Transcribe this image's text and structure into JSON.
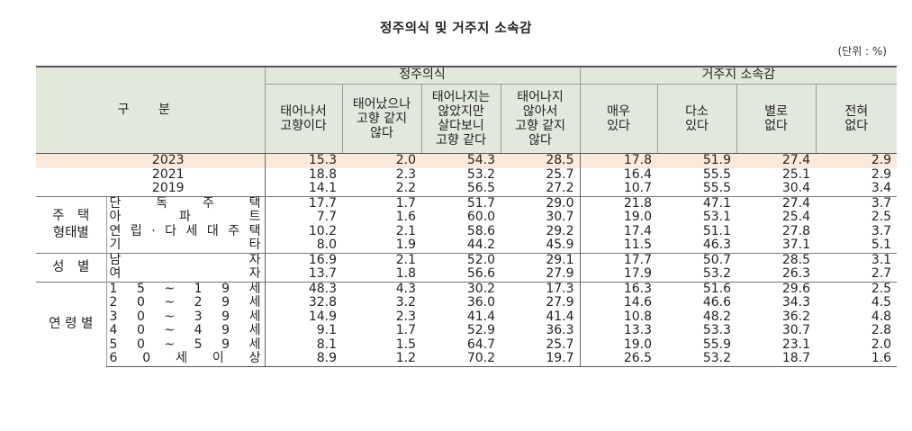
{
  "title": "정주의식 및 거주지 소속감",
  "unit": "(단위 : %)",
  "header": {
    "category": "구 분",
    "group1": "정주의식",
    "group2": "거주지 소속감",
    "cols": [
      [
        "태어나서",
        "고향이다"
      ],
      [
        "태어났으나",
        "고향 같지",
        "않다"
      ],
      [
        "태어나지는",
        "않았지만",
        "살다보니",
        "고향 같다"
      ],
      [
        "태어나지",
        "않아서",
        "고향 같지",
        "않다"
      ],
      [
        "매우",
        "있다"
      ],
      [
        "다소",
        "있다"
      ],
      [
        "별로",
        "없다"
      ],
      [
        "전혀",
        "없다"
      ]
    ]
  },
  "years": [
    {
      "label": "2023",
      "values": [
        "15.3",
        "2.0",
        "54.3",
        "28.5",
        "17.8",
        "51.9",
        "27.4",
        "2.9"
      ]
    },
    {
      "label": "2021",
      "values": [
        "18.8",
        "2.3",
        "53.2",
        "25.7",
        "16.4",
        "55.5",
        "25.1",
        "2.9"
      ]
    },
    {
      "label": "2019",
      "values": [
        "14.1",
        "2.2",
        "56.5",
        "27.2",
        "10.7",
        "55.5",
        "30.4",
        "3.4"
      ]
    }
  ],
  "groups": [
    {
      "name_lines": [
        "주　택",
        "형태별"
      ],
      "rows": [
        {
          "chars": [
            "단",
            "독",
            "주",
            "택"
          ],
          "values": [
            "17.7",
            "1.7",
            "51.7",
            "29.0",
            "21.8",
            "47.1",
            "27.4",
            "3.7"
          ]
        },
        {
          "chars": [
            "아",
            "파",
            "트"
          ],
          "values": [
            "7.7",
            "1.6",
            "60.0",
            "30.7",
            "19.0",
            "53.1",
            "25.4",
            "2.5"
          ]
        },
        {
          "chars": [
            "연",
            "립",
            "·",
            "다",
            "세",
            "대",
            "주",
            "택"
          ],
          "values": [
            "10.2",
            "2.1",
            "58.6",
            "29.2",
            "17.4",
            "51.1",
            "27.8",
            "3.7"
          ]
        },
        {
          "chars": [
            "기",
            "타"
          ],
          "values": [
            "8.0",
            "1.9",
            "44.2",
            "45.9",
            "11.5",
            "46.3",
            "37.1",
            "5.1"
          ]
        }
      ]
    },
    {
      "name_lines": [
        "성　별"
      ],
      "rows": [
        {
          "chars": [
            "남",
            "자"
          ],
          "values": [
            "16.9",
            "2.1",
            "52.0",
            "29.1",
            "17.7",
            "50.7",
            "28.5",
            "3.1"
          ]
        },
        {
          "chars": [
            "여",
            "자"
          ],
          "values": [
            "13.7",
            "1.8",
            "56.6",
            "27.9",
            "17.9",
            "53.2",
            "26.3",
            "2.7"
          ]
        }
      ]
    },
    {
      "name_lines": [
        "연 령 별"
      ],
      "rows": [
        {
          "chars": [
            "1",
            "5",
            "~",
            "1",
            "9",
            "세"
          ],
          "values": [
            "48.3",
            "4.3",
            "30.2",
            "17.3",
            "16.3",
            "51.6",
            "29.6",
            "2.5"
          ]
        },
        {
          "chars": [
            "2",
            "0",
            "~",
            "2",
            "9",
            "세"
          ],
          "values": [
            "32.8",
            "3.2",
            "36.0",
            "27.9",
            "14.6",
            "46.6",
            "34.3",
            "4.5"
          ]
        },
        {
          "chars": [
            "3",
            "0",
            "~",
            "3",
            "9",
            "세"
          ],
          "values": [
            "14.9",
            "2.3",
            "41.4",
            "41.4",
            "10.8",
            "48.2",
            "36.2",
            "4.8"
          ]
        },
        {
          "chars": [
            "4",
            "0",
            "~",
            "4",
            "9",
            "세"
          ],
          "values": [
            "9.1",
            "1.7",
            "52.9",
            "36.3",
            "13.3",
            "53.3",
            "30.7",
            "2.8"
          ]
        },
        {
          "chars": [
            "5",
            "0",
            "~",
            "5",
            "9",
            "세"
          ],
          "values": [
            "8.1",
            "1.5",
            "64.7",
            "25.7",
            "19.0",
            "55.9",
            "23.1",
            "2.0"
          ]
        },
        {
          "chars": [
            "6",
            "0",
            "세",
            "이",
            "상"
          ],
          "values": [
            "8.9",
            "1.2",
            "70.2",
            "19.7",
            "26.5",
            "53.2",
            "18.7",
            "1.6"
          ]
        }
      ]
    }
  ]
}
